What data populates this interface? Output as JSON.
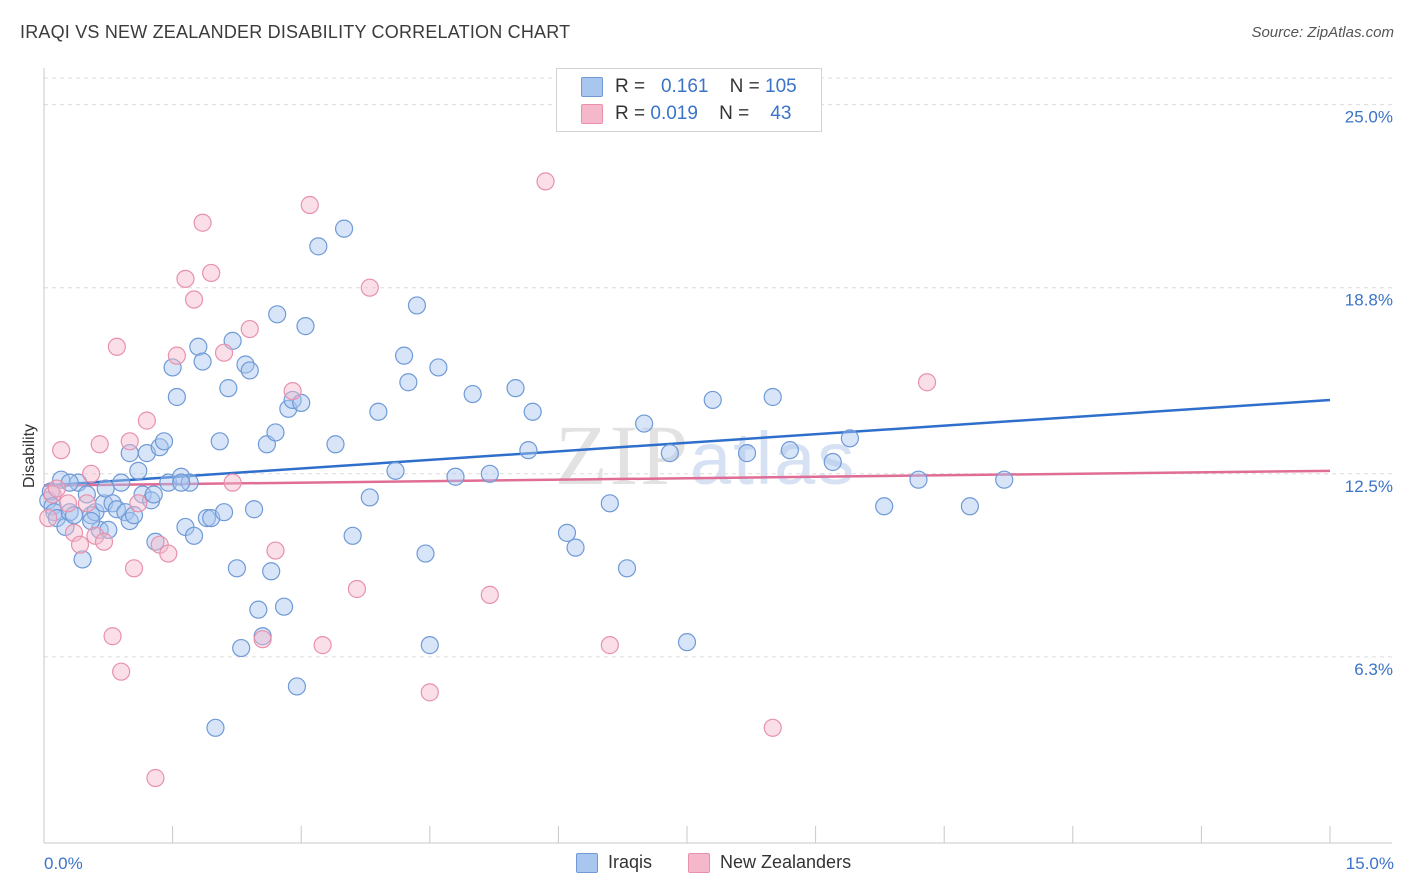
{
  "title": "IRAQI VS NEW ZEALANDER DISABILITY CORRELATION CHART",
  "source": "Source: ZipAtlas.com",
  "watermark": {
    "zip": "ZIP",
    "atlas": "atlas"
  },
  "legend": {
    "rows": [
      {
        "r_label": "R =",
        "r_value": "0.161",
        "n_label": "N =",
        "n_value": "105"
      },
      {
        "r_label": "R =",
        "r_value": "0.019",
        "n_label": "N =",
        "n_value": "43"
      }
    ]
  },
  "bottom_legend": {
    "iraqis": "Iraqis",
    "nz": "New Zealanders"
  },
  "colors": {
    "iraqis_fill": "#a9c6ef",
    "iraqis_stroke": "#6f9ad6",
    "iraqis_line": "#2f6fcc",
    "nz_fill": "#f5b8cb",
    "nz_stroke": "#e891ac",
    "nz_line": "#e06d96",
    "axis_text": "#3b73c8"
  },
  "chart_data": {
    "type": "scatter",
    "title": "IRAQI VS NEW ZEALANDER DISABILITY CORRELATION CHART",
    "xlabel": "",
    "ylabel": "Disability",
    "xlim": [
      0,
      15
    ],
    "ylim": [
      0,
      25.9
    ],
    "x_tick_labels": [
      "0.0%",
      "15.0%"
    ],
    "y_ticks": [
      6.3,
      12.5,
      18.8,
      25.0
    ],
    "y_tick_labels": [
      "6.3%",
      "12.5%",
      "18.8%",
      "25.0%"
    ],
    "grid": true,
    "legend_position": "top-center",
    "series": [
      {
        "name": "Iraqis",
        "R": 0.161,
        "N": 105,
        "trend": [
          [
            0,
            12.1
          ],
          [
            15,
            15.0
          ]
        ],
        "points": [
          [
            0.05,
            11.6
          ],
          [
            0.08,
            11.9
          ],
          [
            0.1,
            11.4
          ],
          [
            0.12,
            11.2
          ],
          [
            0.15,
            11.0
          ],
          [
            0.2,
            12.3
          ],
          [
            0.25,
            10.7
          ],
          [
            0.3,
            11.2
          ],
          [
            0.35,
            11.1
          ],
          [
            0.4,
            12.2
          ],
          [
            0.45,
            9.6
          ],
          [
            0.5,
            11.8
          ],
          [
            0.55,
            11.1
          ],
          [
            0.6,
            11.2
          ],
          [
            0.65,
            10.6
          ],
          [
            0.7,
            11.5
          ],
          [
            0.72,
            12.0
          ],
          [
            0.75,
            10.6
          ],
          [
            0.8,
            11.5
          ],
          [
            0.85,
            11.3
          ],
          [
            0.9,
            12.2
          ],
          [
            0.95,
            11.2
          ],
          [
            1.0,
            10.9
          ],
          [
            1.05,
            11.1
          ],
          [
            1.1,
            12.6
          ],
          [
            1.15,
            11.8
          ],
          [
            1.2,
            13.2
          ],
          [
            1.25,
            11.6
          ],
          [
            1.28,
            11.8
          ],
          [
            1.3,
            10.2
          ],
          [
            1.35,
            13.4
          ],
          [
            1.4,
            13.6
          ],
          [
            1.45,
            12.2
          ],
          [
            1.5,
            16.1
          ],
          [
            1.55,
            15.1
          ],
          [
            1.6,
            12.4
          ],
          [
            1.65,
            10.7
          ],
          [
            1.7,
            12.2
          ],
          [
            1.75,
            10.4
          ],
          [
            1.8,
            16.8
          ],
          [
            1.85,
            16.3
          ],
          [
            1.9,
            11.0
          ],
          [
            1.95,
            11.0
          ],
          [
            2.0,
            3.9
          ],
          [
            2.05,
            13.6
          ],
          [
            2.1,
            11.2
          ],
          [
            2.15,
            15.4
          ],
          [
            2.2,
            17.0
          ],
          [
            2.25,
            9.3
          ],
          [
            2.3,
            6.6
          ],
          [
            2.35,
            16.2
          ],
          [
            2.4,
            16.0
          ],
          [
            2.45,
            11.3
          ],
          [
            2.5,
            7.9
          ],
          [
            2.55,
            7.0
          ],
          [
            2.6,
            13.5
          ],
          [
            2.65,
            9.2
          ],
          [
            2.7,
            13.9
          ],
          [
            2.72,
            17.9
          ],
          [
            2.8,
            8.0
          ],
          [
            2.85,
            14.7
          ],
          [
            2.9,
            15.0
          ],
          [
            2.95,
            5.3
          ],
          [
            3.05,
            17.5
          ],
          [
            3.2,
            20.2
          ],
          [
            3.4,
            13.5
          ],
          [
            3.5,
            20.8
          ],
          [
            3.6,
            10.4
          ],
          [
            3.8,
            11.7
          ],
          [
            3.9,
            14.6
          ],
          [
            4.1,
            12.6
          ],
          [
            4.2,
            16.5
          ],
          [
            4.25,
            15.6
          ],
          [
            4.35,
            18.2
          ],
          [
            4.45,
            9.8
          ],
          [
            4.5,
            6.7
          ],
          [
            4.6,
            16.1
          ],
          [
            4.8,
            12.4
          ],
          [
            5.0,
            15.2
          ],
          [
            5.2,
            12.5
          ],
          [
            5.5,
            15.4
          ],
          [
            5.65,
            13.3
          ],
          [
            5.7,
            14.6
          ],
          [
            6.1,
            10.5
          ],
          [
            6.2,
            10.0
          ],
          [
            6.6,
            11.5
          ],
          [
            6.8,
            9.3
          ],
          [
            7.0,
            14.2
          ],
          [
            7.3,
            13.2
          ],
          [
            7.5,
            6.8
          ],
          [
            7.8,
            15.0
          ],
          [
            8.2,
            13.2
          ],
          [
            8.5,
            15.1
          ],
          [
            8.7,
            13.3
          ],
          [
            9.2,
            12.9
          ],
          [
            9.4,
            13.7
          ],
          [
            9.8,
            11.4
          ],
          [
            10.2,
            12.3
          ],
          [
            10.8,
            11.4
          ],
          [
            11.2,
            12.3
          ],
          [
            0.3,
            12.2
          ],
          [
            0.55,
            10.9
          ],
          [
            1.0,
            13.2
          ],
          [
            1.6,
            12.2
          ],
          [
            3.0,
            14.9
          ]
        ]
      },
      {
        "name": "New Zealanders",
        "R": 0.019,
        "N": 43,
        "trend": [
          [
            0,
            12.1
          ],
          [
            15,
            12.6
          ]
        ],
        "points": [
          [
            0.05,
            11.0
          ],
          [
            0.1,
            11.8
          ],
          [
            0.15,
            12.0
          ],
          [
            0.2,
            13.3
          ],
          [
            0.28,
            11.5
          ],
          [
            0.35,
            10.5
          ],
          [
            0.42,
            10.1
          ],
          [
            0.5,
            11.5
          ],
          [
            0.55,
            12.5
          ],
          [
            0.6,
            10.4
          ],
          [
            0.65,
            13.5
          ],
          [
            0.7,
            10.2
          ],
          [
            0.8,
            7.0
          ],
          [
            0.85,
            16.8
          ],
          [
            0.9,
            5.8
          ],
          [
            1.0,
            13.6
          ],
          [
            1.05,
            9.3
          ],
          [
            1.1,
            11.5
          ],
          [
            1.2,
            14.3
          ],
          [
            1.3,
            2.2
          ],
          [
            1.35,
            10.1
          ],
          [
            1.45,
            9.8
          ],
          [
            1.55,
            16.5
          ],
          [
            1.65,
            19.1
          ],
          [
            1.75,
            18.4
          ],
          [
            1.85,
            21.0
          ],
          [
            1.95,
            19.3
          ],
          [
            2.1,
            16.6
          ],
          [
            2.2,
            12.2
          ],
          [
            2.4,
            17.4
          ],
          [
            2.55,
            6.9
          ],
          [
            2.7,
            9.9
          ],
          [
            2.9,
            15.3
          ],
          [
            3.1,
            21.6
          ],
          [
            3.25,
            6.7
          ],
          [
            3.65,
            8.6
          ],
          [
            3.8,
            18.8
          ],
          [
            4.5,
            5.1
          ],
          [
            5.2,
            8.4
          ],
          [
            5.85,
            22.4
          ],
          [
            6.6,
            6.7
          ],
          [
            8.5,
            3.9
          ],
          [
            10.3,
            15.6
          ]
        ]
      }
    ]
  }
}
